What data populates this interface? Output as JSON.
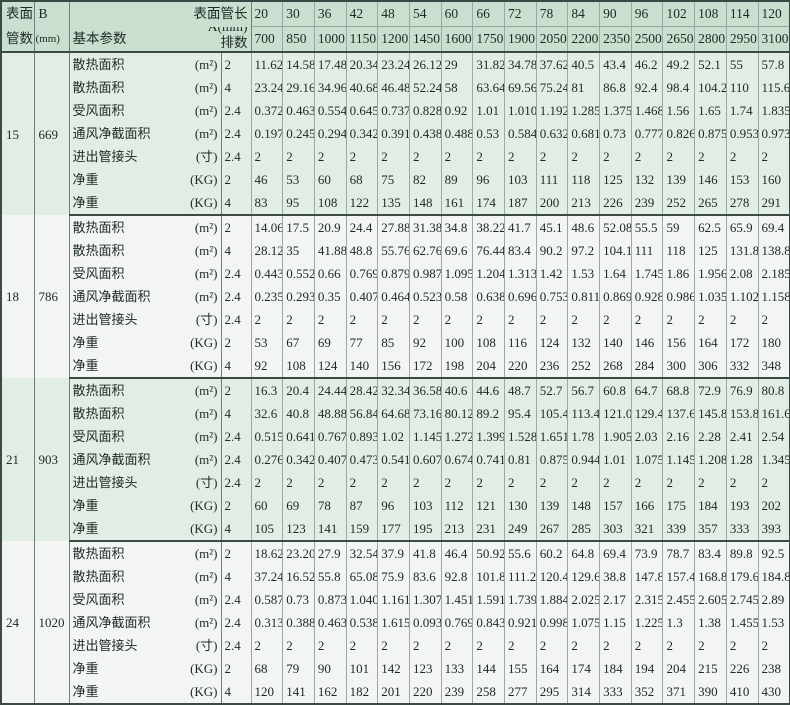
{
  "header": {
    "tube_count_label_1": "表面",
    "tube_count_label_2": "管数",
    "b_label": "B",
    "b_unit": "(mm)",
    "params_label": "基本参数",
    "length_label": "表面管长",
    "a_label": "A(mm)",
    "rows_label": "排数",
    "tube_lengths": [
      "20",
      "30",
      "36",
      "42",
      "48",
      "54",
      "60",
      "66",
      "72",
      "78",
      "84",
      "90",
      "96",
      "102",
      "108",
      "114",
      "120"
    ],
    "a_values": [
      "700",
      "850",
      "1000",
      "1150",
      "1200",
      "1450",
      "1600",
      "1750",
      "1900",
      "2050",
      "2200",
      "2350",
      "2500",
      "2650",
      "2800",
      "2950",
      "3100"
    ]
  },
  "colors": {
    "header_bg": "#c9dfcf",
    "group_mint": "#e2eee5",
    "group_light": "#f2f5f2",
    "border": "#3a4a44"
  },
  "groups": [
    {
      "tubes": "15",
      "b": "669",
      "rows": [
        {
          "param": "散热面积",
          "unit": "(m²)",
          "rows": "2",
          "values": [
            "11.62",
            "14.58",
            "17.48",
            "20.34",
            "23.24",
            "26.12",
            "29",
            "31.82",
            "34.78",
            "37.62",
            "40.5",
            "43.4",
            "46.2",
            "49.2",
            "52.1",
            "55",
            "57.8"
          ]
        },
        {
          "param": "散热面积",
          "unit": "(m²)",
          "rows": "4",
          "values": [
            "23.24",
            "29.16",
            "34.96",
            "40.68",
            "46.48",
            "52.24",
            "58",
            "63.64",
            "69.56",
            "75.24",
            "81",
            "86.8",
            "92.4",
            "98.4",
            "104.2",
            "110",
            "115.6"
          ]
        },
        {
          "param": "受风面积",
          "unit": "(m²)",
          "rows": "2.4",
          "values": [
            "0.372",
            "0.463",
            "0.554",
            "0.645",
            "0.737",
            "0.828",
            "0.92",
            "1.01",
            "1.010",
            "1.192",
            "1.285",
            "1.375",
            "1.468",
            "1.56",
            "1.65",
            "1.74",
            "1.835"
          ]
        },
        {
          "param": "通风净截面积",
          "unit": "(m²)",
          "rows": "2.4",
          "values": [
            "0.197",
            "0.245",
            "0.294",
            "0.342",
            "0.391",
            "0.438",
            "0.488",
            "0.53",
            "0.584",
            "0.632",
            "0.681",
            "0.73",
            "0.777",
            "0.826",
            "0.875",
            "0.953",
            "0.973"
          ]
        },
        {
          "param": "进出管接头",
          "unit": "(寸)",
          "rows": "2.4",
          "values": [
            "2",
            "2",
            "2",
            "2",
            "2",
            "2",
            "2",
            "2",
            "2",
            "2",
            "2",
            "2",
            "2",
            "2",
            "2",
            "2",
            "2"
          ]
        },
        {
          "param": "净重",
          "unit": "(KG)",
          "rows": "2",
          "values": [
            "46",
            "53",
            "60",
            "68",
            "75",
            "82",
            "89",
            "96",
            "103",
            "111",
            "118",
            "125",
            "132",
            "139",
            "146",
            "153",
            "160"
          ]
        },
        {
          "param": "净重",
          "unit": "(KG)",
          "rows": "4",
          "values": [
            "83",
            "95",
            "108",
            "122",
            "135",
            "148",
            "161",
            "174",
            "187",
            "200",
            "213",
            "226",
            "239",
            "252",
            "265",
            "278",
            "291"
          ]
        }
      ]
    },
    {
      "tubes": "18",
      "b": "786",
      "rows": [
        {
          "param": "散热面积",
          "unit": "(m²)",
          "rows": "2",
          "values": [
            "14.06",
            "17.5",
            "20.9",
            "24.4",
            "27.88",
            "31.38",
            "34.8",
            "38.22",
            "41.7",
            "45.1",
            "48.6",
            "52.08",
            "55.5",
            "59",
            "62.5",
            "65.9",
            "69.4"
          ]
        },
        {
          "param": "散热面积",
          "unit": "(m²)",
          "rows": "4",
          "values": [
            "28.12",
            "35",
            "41.88",
            "48.8",
            "55.76",
            "62.76",
            "69.6",
            "76.44",
            "83.4",
            "90.2",
            "97.2",
            "104.16",
            "111",
            "118",
            "125",
            "131.8",
            "138.8"
          ]
        },
        {
          "param": "受风面积",
          "unit": "(m²)",
          "rows": "2.4",
          "values": [
            "0.443",
            "0.552",
            "0.66",
            "0.769",
            "0.879",
            "0.987",
            "1.095",
            "1.204",
            "1.313",
            "1.42",
            "1.53",
            "1.64",
            "1.745",
            "1.86",
            "1.956",
            "2.08",
            "2.185"
          ]
        },
        {
          "param": "通风净截面积",
          "unit": "(m²)",
          "rows": "2.4",
          "values": [
            "0.235",
            "0.293",
            "0.35",
            "0.407",
            "0.464",
            "0.523",
            "0.58",
            "0.638",
            "0.696",
            "0.753",
            "0.811",
            "0.869",
            "0.928",
            "0.986",
            "1.035",
            "1.102",
            "1.158"
          ]
        },
        {
          "param": "进出管接头",
          "unit": "(寸)",
          "rows": "2.4",
          "values": [
            "2",
            "2",
            "2",
            "2",
            "2",
            "2",
            "2",
            "2",
            "2",
            "2",
            "2",
            "2",
            "2",
            "2",
            "2",
            "2",
            "2"
          ]
        },
        {
          "param": "净重",
          "unit": "(KG)",
          "rows": "2",
          "values": [
            "53",
            "67",
            "69",
            "77",
            "85",
            "92",
            "100",
            "108",
            "116",
            "124",
            "132",
            "140",
            "146",
            "156",
            "164",
            "172",
            "180"
          ]
        },
        {
          "param": "净重",
          "unit": "(KG)",
          "rows": "4",
          "values": [
            "92",
            "108",
            "124",
            "140",
            "156",
            "172",
            "198",
            "204",
            "220",
            "236",
            "252",
            "268",
            "284",
            "300",
            "306",
            "332",
            "348"
          ]
        }
      ]
    },
    {
      "tubes": "21",
      "b": "903",
      "rows": [
        {
          "param": "散热面积",
          "unit": "(m²)",
          "rows": "2",
          "values": [
            "16.3",
            "20.4",
            "24.44",
            "28.42",
            "32.34",
            "36.58",
            "40.6",
            "44.6",
            "48.7",
            "52.7",
            "56.7",
            "60.8",
            "64.7",
            "68.8",
            "72.9",
            "76.9",
            "80.8"
          ]
        },
        {
          "param": "散热面积",
          "unit": "(m²)",
          "rows": "4",
          "values": [
            "32.6",
            "40.8",
            "48.88",
            "56.84",
            "64.68",
            "73.16",
            "80.12",
            "89.2",
            "95.4",
            "105.4",
            "113.4",
            "121.0",
            "129.4",
            "137.6",
            "145.8",
            "153.8",
            "161.6"
          ]
        },
        {
          "param": "受风面积",
          "unit": "(m²)",
          "rows": "2.4",
          "values": [
            "0.515",
            "0.641",
            "0.767",
            "0.893",
            "1.02",
            "1.145",
            "1.272",
            "1.399",
            "1.528",
            "1.651",
            "1.78",
            "1.905",
            "2.03",
            "2.16",
            "2.28",
            "2.41",
            "2.54"
          ]
        },
        {
          "param": "通风净截面积",
          "unit": "(m²)",
          "rows": "2.4",
          "values": [
            "0.276",
            "0.342",
            "0.407",
            "0.473",
            "0.541",
            "0.607",
            "0.674",
            "0.741",
            "0.81",
            "0.875",
            "0.944",
            "1.01",
            "1.075",
            "1.145",
            "1.208",
            "1.28",
            "1.345"
          ]
        },
        {
          "param": "进出管接头",
          "unit": "(寸)",
          "rows": "2.4",
          "values": [
            "2",
            "2",
            "2",
            "2",
            "2",
            "2",
            "2",
            "2",
            "2",
            "2",
            "2",
            "2",
            "2",
            "2",
            "2",
            "2",
            "2"
          ]
        },
        {
          "param": "净重",
          "unit": "(KG)",
          "rows": "2",
          "values": [
            "60",
            "69",
            "78",
            "87",
            "96",
            "103",
            "112",
            "121",
            "130",
            "139",
            "148",
            "157",
            "166",
            "175",
            "184",
            "193",
            "202"
          ]
        },
        {
          "param": "净重",
          "unit": "(KG)",
          "rows": "4",
          "values": [
            "105",
            "123",
            "141",
            "159",
            "177",
            "195",
            "213",
            "231",
            "249",
            "267",
            "285",
            "303",
            "321",
            "339",
            "357",
            "333",
            "393"
          ]
        }
      ]
    },
    {
      "tubes": "24",
      "b": "1020",
      "rows": [
        {
          "param": "散热面积",
          "unit": "(m²)",
          "rows": "2",
          "values": [
            "18.62",
            "23.20",
            "27.9",
            "32.54",
            "37.9",
            "41.8",
            "46.4",
            "50.92",
            "55.6",
            "60.2",
            "64.8",
            "69.4",
            "73.9",
            "78.7",
            "83.4",
            "89.8",
            "92.5"
          ]
        },
        {
          "param": "散热面积",
          "unit": "(m²)",
          "rows": "4",
          "values": [
            "37.24",
            "16.52",
            "55.8",
            "65.08",
            "75.9",
            "83.6",
            "92.8",
            "101.8",
            "111.2",
            "120.4",
            "129.6",
            "38.8",
            "147.8",
            "157.4",
            "168.8",
            "179.6",
            "184.8"
          ]
        },
        {
          "param": "受风面积",
          "unit": "(m²)",
          "rows": "2.4",
          "values": [
            "0.587",
            "0.73",
            "0.873",
            "1.040",
            "1.161",
            "1.307",
            "1.451",
            "1.591",
            "1.739",
            "1.884",
            "2.025",
            "2.17",
            "2.315",
            "2.455",
            "2.605",
            "2.745",
            "2.89"
          ]
        },
        {
          "param": "通风净截面积",
          "unit": "(m²)",
          "rows": "2.4",
          "values": [
            "0.313",
            "0.388",
            "0.463",
            "0.538",
            "1.615",
            "0.093",
            "0.769",
            "0.843",
            "0.921",
            "0.998",
            "1.075",
            "1.15",
            "1.225",
            "1.3",
            "1.38",
            "1.455",
            "1.53"
          ]
        },
        {
          "param": "进出管接头",
          "unit": "(寸)",
          "rows": "2.4",
          "values": [
            "2",
            "2",
            "2",
            "2",
            "2",
            "2",
            "2",
            "2",
            "2",
            "2",
            "2",
            "2",
            "2",
            "2",
            "2",
            "2",
            "2"
          ]
        },
        {
          "param": "净重",
          "unit": "(KG)",
          "rows": "2",
          "values": [
            "68",
            "79",
            "90",
            "101",
            "142",
            "123",
            "133",
            "144",
            "155",
            "164",
            "174",
            "184",
            "194",
            "204",
            "215",
            "226",
            "238"
          ]
        },
        {
          "param": "净重",
          "unit": "(KG)",
          "rows": "4",
          "values": [
            "120",
            "141",
            "162",
            "182",
            "201",
            "220",
            "239",
            "258",
            "277",
            "295",
            "314",
            "333",
            "352",
            "371",
            "390",
            "410",
            "430"
          ]
        }
      ]
    }
  ]
}
